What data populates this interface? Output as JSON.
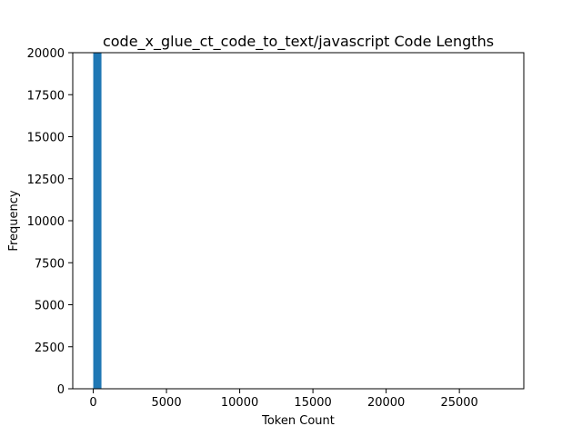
{
  "chart_data": {
    "type": "bar",
    "title": "code_x_glue_ct_code_to_text/javascript Code Lengths",
    "xlabel": "Token Count",
    "ylabel": "Frequency",
    "xlim": [
      -1400,
      29400
    ],
    "ylim": [
      0,
      20000
    ],
    "xticks": [
      0,
      5000,
      10000,
      15000,
      20000,
      25000
    ],
    "yticks": [
      0,
      2500,
      5000,
      7500,
      10000,
      12500,
      15000,
      17500,
      20000
    ],
    "bins": [
      {
        "x0": 0,
        "x1": 560,
        "count": 20000
      }
    ],
    "bar_color": "#1f77b4",
    "grid": false,
    "legend": "none"
  }
}
